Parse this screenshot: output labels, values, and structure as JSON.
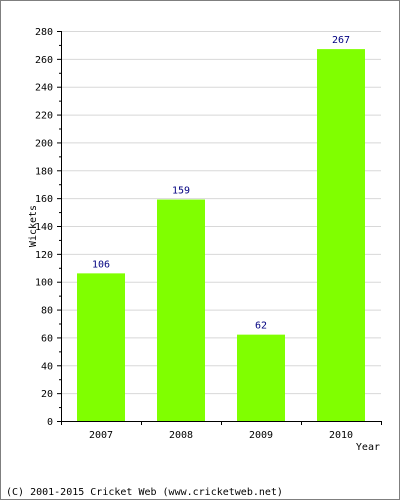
{
  "chart_data": {
    "type": "bar",
    "title": "",
    "xlabel": "Year",
    "ylabel": "Wickets",
    "categories": [
      "2007",
      "2008",
      "2009",
      "2010"
    ],
    "values": [
      106,
      159,
      62,
      267
    ],
    "data_labels": [
      "106",
      "159",
      "62",
      "267"
    ],
    "ylim": [
      0,
      280
    ],
    "y_ticks": [
      0,
      20,
      40,
      60,
      80,
      100,
      120,
      140,
      160,
      180,
      200,
      220,
      240,
      260,
      280
    ],
    "y_tick_labels": [
      "0",
      "20",
      "40",
      "60",
      "80",
      "100",
      "120",
      "140",
      "160",
      "180",
      "200",
      "220",
      "240",
      "260",
      "280"
    ],
    "grid": "horizontal",
    "legend": "none",
    "colors": {
      "bar": "#80ff00",
      "grid": "#d8d8d8",
      "axis": "#000000",
      "data_label": "#000080",
      "border": "#7f7f7f"
    }
  },
  "footer": {
    "copyright": "(C) 2001-2015 Cricket Web (www.cricketweb.net)"
  }
}
